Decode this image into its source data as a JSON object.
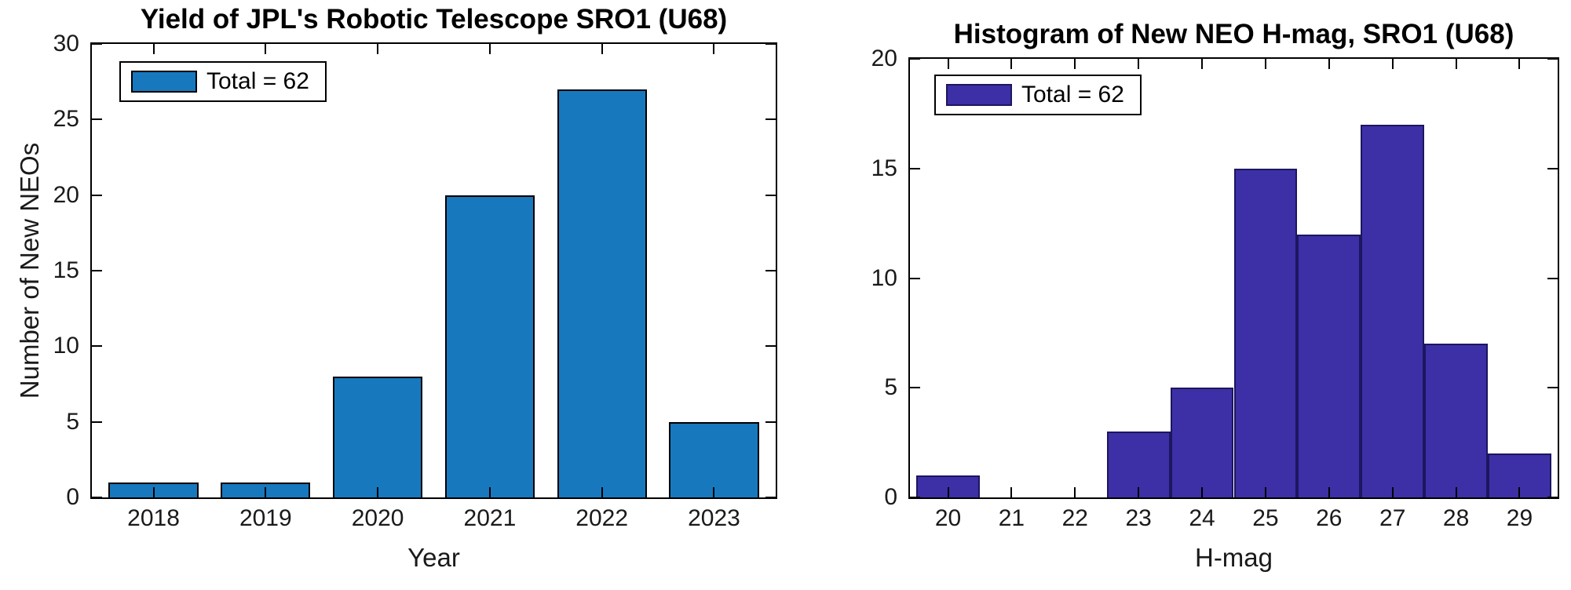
{
  "figure": {
    "background": "#ffffff"
  },
  "chart_data": [
    {
      "type": "bar",
      "title": "Yield of JPL's Robotic Telescope SRO1 (U68)",
      "xlabel": "Year",
      "ylabel": "Number of New NEOs",
      "legend": {
        "label": "Total = 62",
        "position": "top-left"
      },
      "total": 62,
      "categories": [
        "2018",
        "2019",
        "2020",
        "2021",
        "2022",
        "2023"
      ],
      "x": [
        2018,
        2019,
        2020,
        2021,
        2022,
        2023
      ],
      "values": [
        1,
        1,
        8,
        20,
        27,
        5
      ],
      "xticks": [
        "2018",
        "2019",
        "2020",
        "2021",
        "2022",
        "2023"
      ],
      "yticks": [
        0,
        5,
        10,
        15,
        20,
        25,
        30
      ],
      "xlim": [
        2017.45,
        2023.55
      ],
      "ylim": [
        0,
        30
      ],
      "bar_width": 0.8,
      "bar_color": "#1878be",
      "bar_edge_color": "#000000",
      "grid": false
    },
    {
      "type": "bar",
      "subtype": "histogram",
      "title": "Histogram of New NEO H-mag, SRO1 (U68)",
      "xlabel": "H-mag",
      "ylabel": "",
      "legend": {
        "label": "Total = 62",
        "position": "top-left"
      },
      "total": 62,
      "categories": [
        "20",
        "21",
        "22",
        "23",
        "24",
        "25",
        "26",
        "27",
        "28",
        "29"
      ],
      "x": [
        20,
        21,
        22,
        23,
        24,
        25,
        26,
        27,
        28,
        29
      ],
      "values": [
        1,
        0,
        0,
        3,
        5,
        15,
        12,
        17,
        7,
        2
      ],
      "xticks": [
        "20",
        "21",
        "22",
        "23",
        "24",
        "25",
        "26",
        "27",
        "28",
        "29"
      ],
      "yticks": [
        0,
        5,
        10,
        15,
        20
      ],
      "xlim": [
        19.4,
        29.6
      ],
      "ylim": [
        0,
        20
      ],
      "bin_width": 1,
      "bar_width": 1.0,
      "bar_color": "#3d2fa6",
      "bar_edge_color": "#1d1660",
      "grid": false
    }
  ]
}
